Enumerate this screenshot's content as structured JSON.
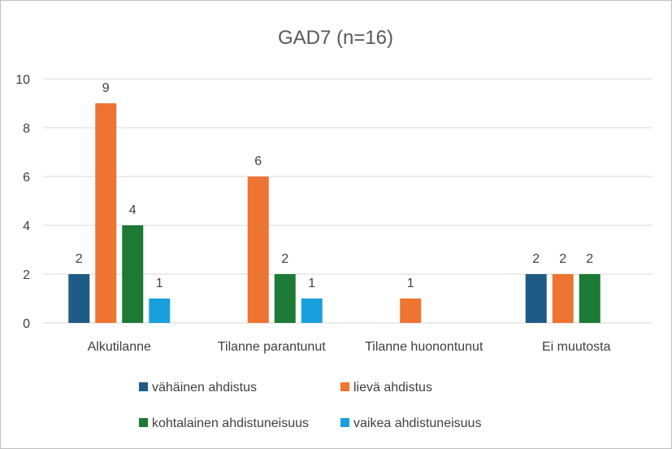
{
  "chart_data": {
    "type": "bar",
    "title": "GAD7 (n=16)",
    "categories": [
      "Alkutilanne",
      "Tilanne parantunut",
      "Tilanne huonontunut",
      "Ei muutosta"
    ],
    "series": [
      {
        "name": "vähäinen ahdistus",
        "color": "#1f5c85",
        "values": [
          2,
          0,
          0,
          2
        ]
      },
      {
        "name": "lievä ahdistus",
        "color": "#ed7431",
        "values": [
          9,
          6,
          1,
          2
        ]
      },
      {
        "name": "kohtalainen ahdistuneisuus",
        "color": "#1c7a35",
        "values": [
          4,
          2,
          0,
          2
        ]
      },
      {
        "name": "vaikea ahdistuneisuus",
        "color": "#19a0dc",
        "values": [
          1,
          1,
          0,
          0
        ]
      }
    ],
    "yticks": [
      0,
      2,
      4,
      6,
      8,
      10
    ],
    "ylim": [
      0,
      10
    ],
    "grid": true,
    "legend_position": "bottom",
    "data_labels": true
  }
}
